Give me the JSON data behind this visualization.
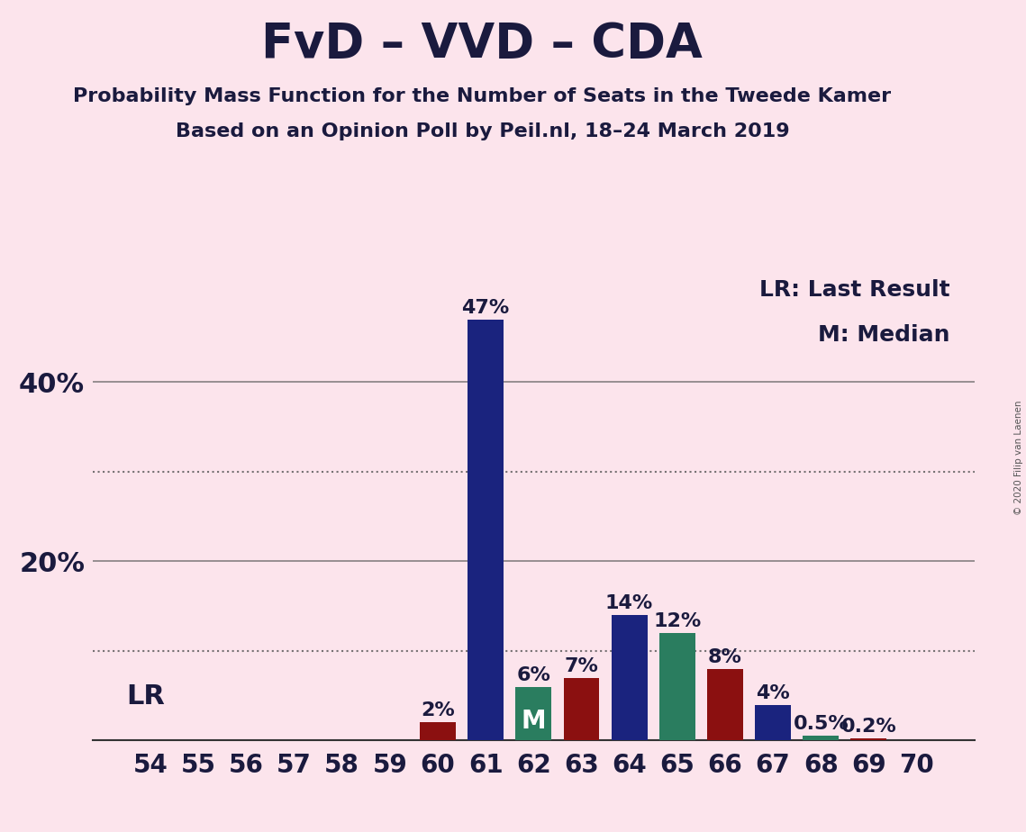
{
  "title": "FvD – VVD – CDA",
  "subtitle1": "Probability Mass Function for the Number of Seats in the Tweede Kamer",
  "subtitle2": "Based on an Opinion Poll by Peil.nl, 18–24 March 2019",
  "copyright": "© 2020 Filip van Laenen",
  "legend_text1": "LR: Last Result",
  "legend_text2": "M: Median",
  "lr_label": "LR",
  "x_values": [
    54,
    55,
    56,
    57,
    58,
    59,
    60,
    61,
    62,
    63,
    64,
    65,
    66,
    67,
    68,
    69,
    70
  ],
  "y_values": [
    0,
    0,
    0,
    0,
    0,
    0,
    2,
    47,
    6,
    7,
    14,
    12,
    8,
    4,
    0.5,
    0.2,
    0
  ],
  "bar_colors": [
    "#8b1010",
    "#8b1010",
    "#8b1010",
    "#8b1010",
    "#8b1010",
    "#8b1010",
    "#8b1010",
    "#1a237e",
    "#2a7d5f",
    "#8b1010",
    "#1a237e",
    "#2a7d5f",
    "#8b1010",
    "#1a237e",
    "#2a7d5f",
    "#8b1010",
    "#2a7d5f"
  ],
  "median_idx": 8,
  "ylim": [
    0,
    52
  ],
  "ytick_positions": [
    20,
    40
  ],
  "ytick_labels": [
    "20%",
    "40%"
  ],
  "hgrid_solid": [
    20,
    40
  ],
  "hgrid_dotted": [
    10,
    30
  ],
  "background_color": "#fce4ec",
  "title_color": "#1a1a3e",
  "title_fontsize": 38,
  "subtitle_fontsize": 16,
  "tick_fontsize": 20,
  "annot_fontsize": 16,
  "bar_label_fontsize": 16,
  "lr_fontsize": 22,
  "legend_fontsize": 18
}
